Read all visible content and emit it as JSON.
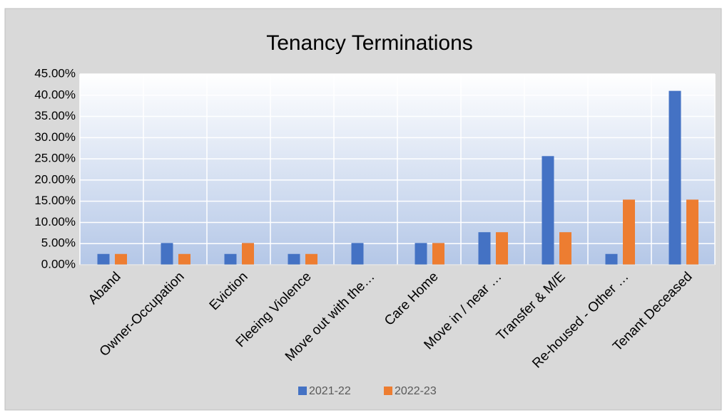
{
  "chart_data": {
    "type": "bar",
    "title": "Tenancy Terminations",
    "categories": [
      "Aband",
      "Owner-Occupation",
      "Eviction",
      "Fleeing Violence",
      "Move out with the…",
      "Care Home",
      "Move  in / near …",
      "Transfer & M/E",
      "Re-housed - Other …",
      "Tenant Deceased"
    ],
    "series": [
      {
        "name": "2021-22",
        "color": "#4472c4",
        "values": [
          2.56,
          5.13,
          2.56,
          2.56,
          5.13,
          5.13,
          7.69,
          25.64,
          2.56,
          41.03
        ]
      },
      {
        "name": "2022-23",
        "color": "#ed7d31",
        "values": [
          2.56,
          2.56,
          5.13,
          2.56,
          0,
          5.13,
          7.69,
          7.69,
          15.38,
          15.38
        ]
      }
    ],
    "ylim": [
      0,
      45
    ],
    "yticks": [
      {
        "value": 0,
        "label": "0.00%"
      },
      {
        "value": 5,
        "label": "5.00%"
      },
      {
        "value": 10,
        "label": "10.00%"
      },
      {
        "value": 15,
        "label": "15.00%"
      },
      {
        "value": 20,
        "label": "20.00%"
      },
      {
        "value": 25,
        "label": "25.00%"
      },
      {
        "value": 30,
        "label": "30.00%"
      },
      {
        "value": 35,
        "label": "35.00%"
      },
      {
        "value": 40,
        "label": "40.00%"
      },
      {
        "value": 45,
        "label": "45.00%"
      }
    ],
    "grid": true,
    "legend": "bottom"
  }
}
